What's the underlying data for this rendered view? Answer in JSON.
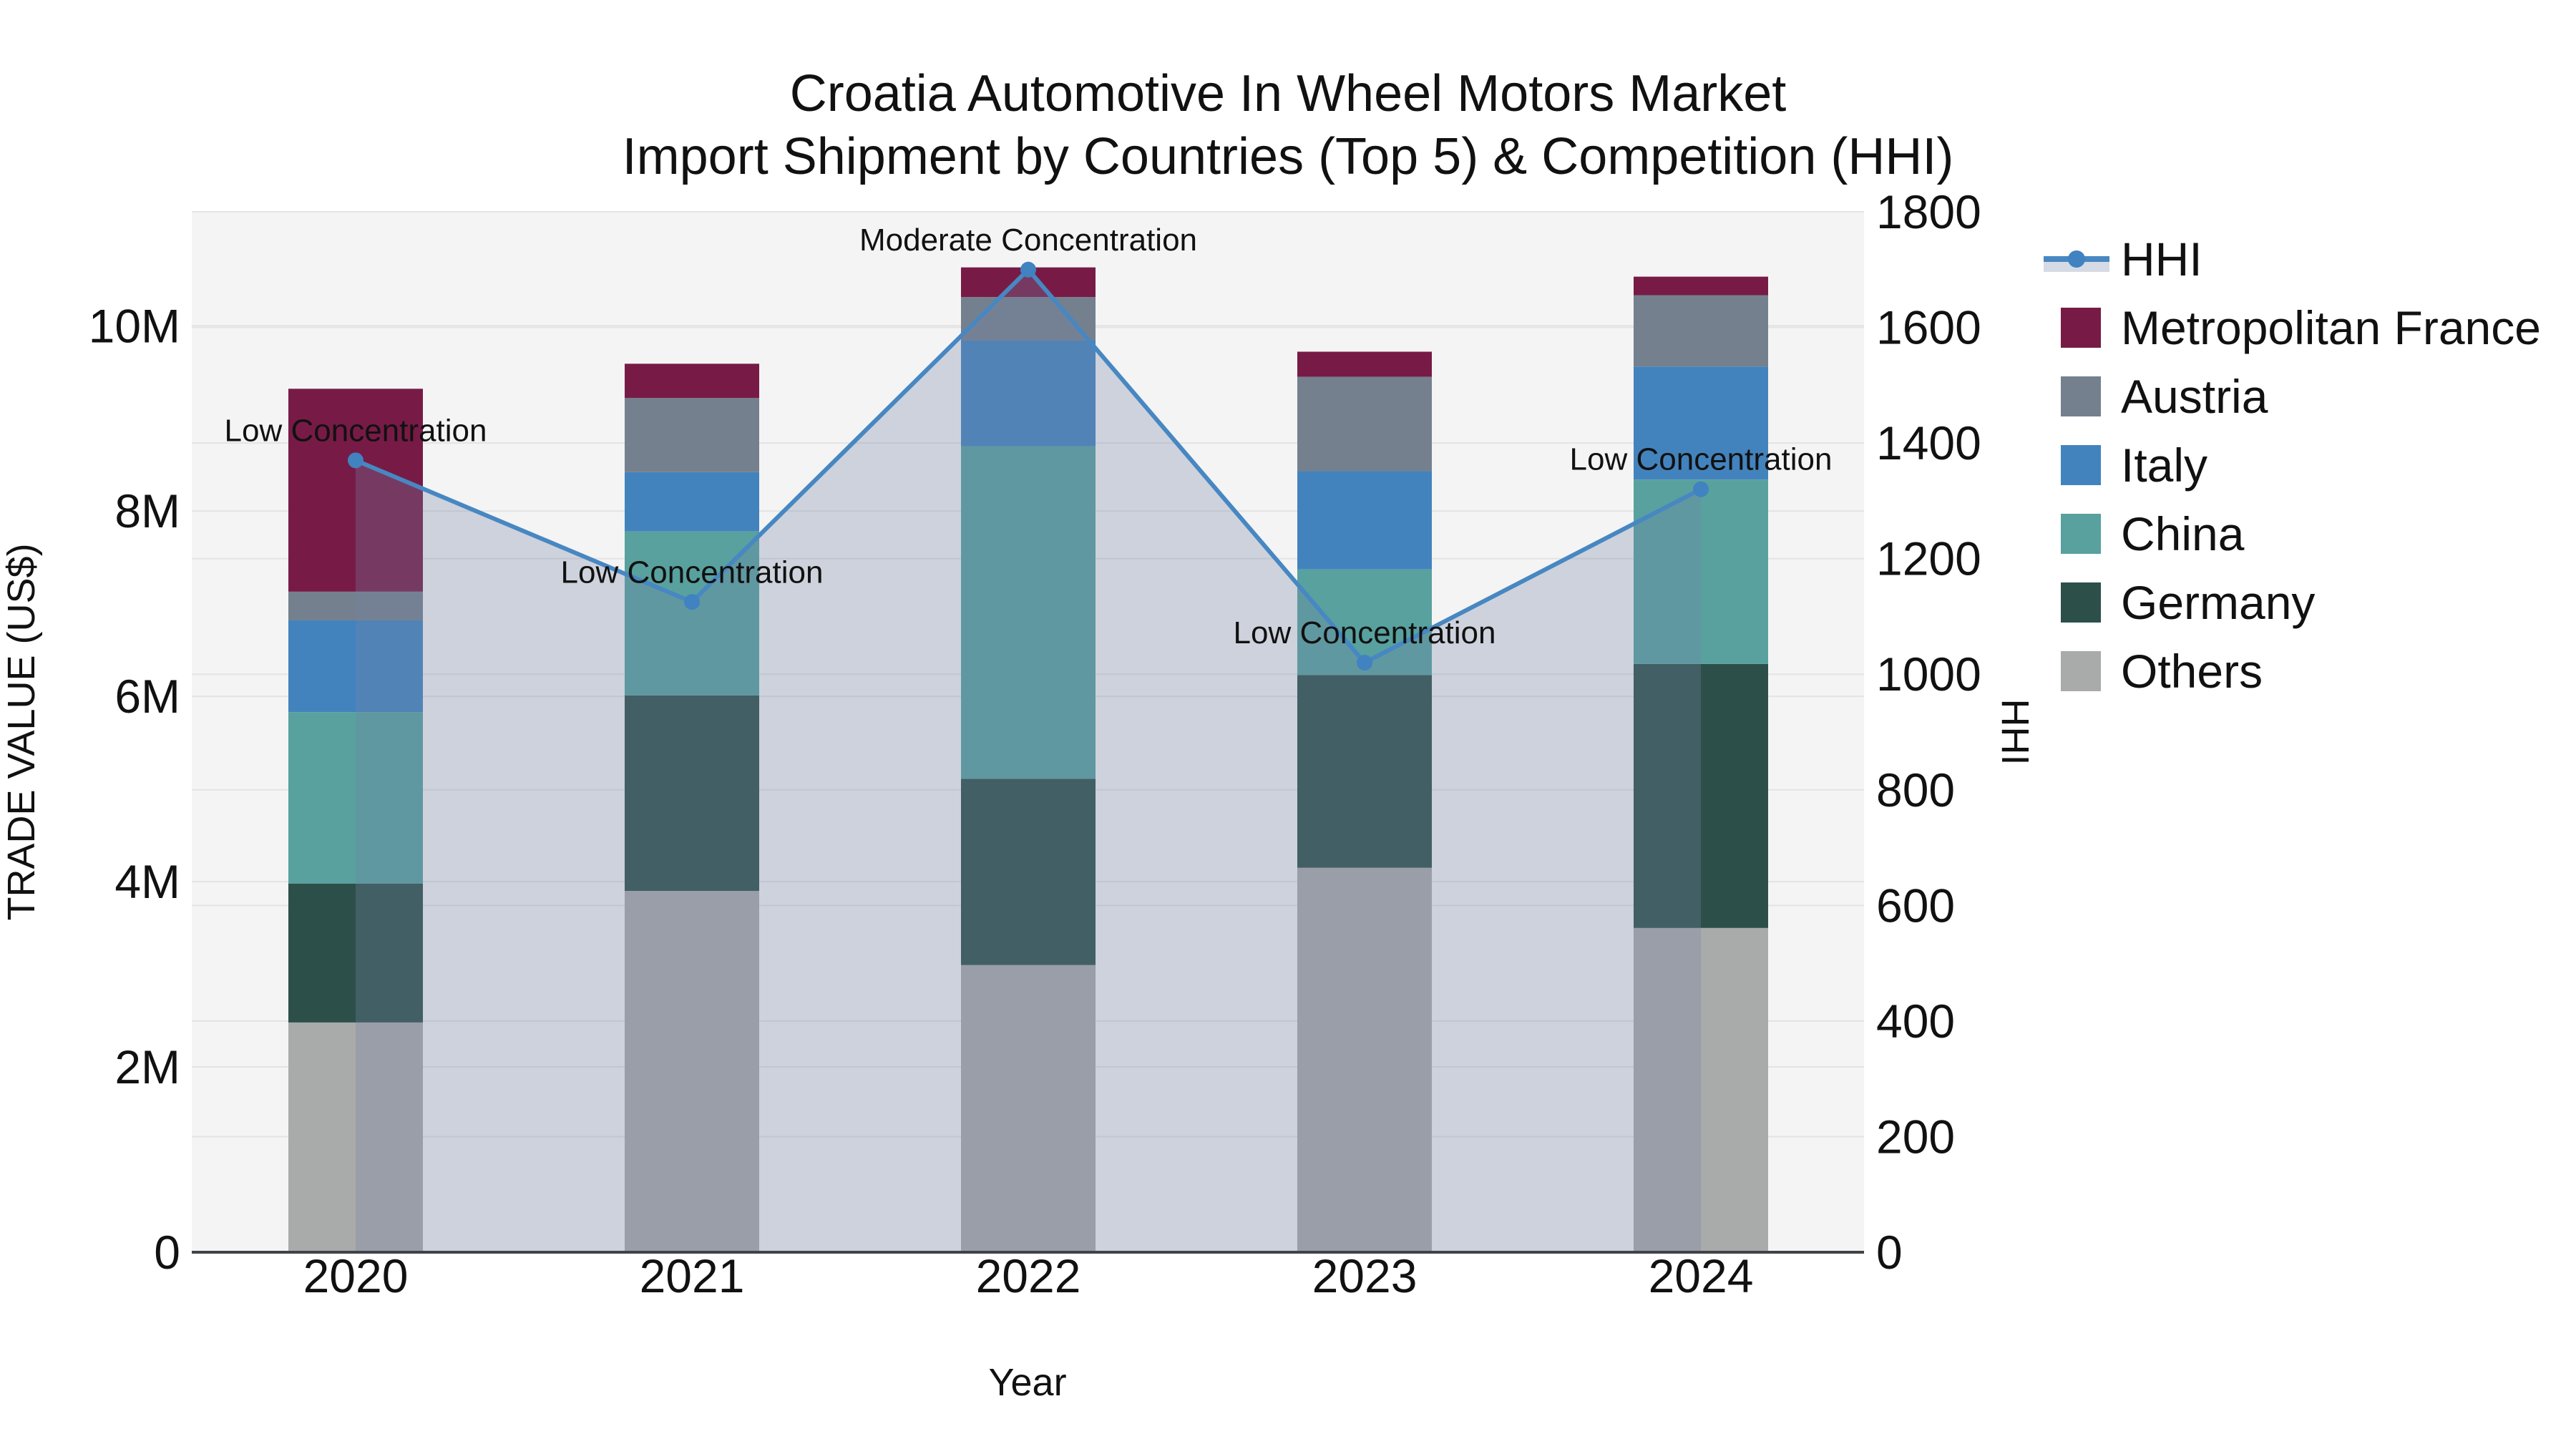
{
  "title": {
    "line1": "Croatia Automotive In Wheel Motors Market",
    "line2": "Import Shipment by Countries (Top 5) & Competition (HHI)"
  },
  "chart_data": {
    "type": "combo-stacked-bar-line",
    "x_label": "Year",
    "y_left_label": "TRADE VALUE (US$)",
    "y_right_label": "HHI",
    "unit": "US$ millions",
    "categories": [
      "2020",
      "2021",
      "2022",
      "2023",
      "2024"
    ],
    "series": [
      {
        "name": "Others",
        "color": "#a9aaaa",
        "values": [
          2.48,
          3.9,
          3.1,
          4.15,
          3.5
        ]
      },
      {
        "name": "Germany",
        "color": "#2d4f4a",
        "values": [
          1.5,
          2.11,
          2.01,
          2.08,
          2.85
        ]
      },
      {
        "name": "China",
        "color": "#58a19f",
        "values": [
          1.85,
          1.77,
          3.59,
          1.14,
          1.99
        ]
      },
      {
        "name": "Italy",
        "color": "#4383bd",
        "values": [
          0.99,
          0.64,
          1.14,
          1.06,
          1.22
        ]
      },
      {
        "name": "Austria",
        "color": "#74808e",
        "values": [
          0.31,
          0.8,
          0.47,
          1.02,
          0.77
        ]
      },
      {
        "name": "Metropolitan France",
        "color": "#771b46",
        "values": [
          2.19,
          0.37,
          0.32,
          0.27,
          0.2
        ]
      }
    ],
    "totals": [
      9.32,
      9.59,
      10.63,
      9.72,
      10.53
    ],
    "line_series": {
      "name": "HHI",
      "color": "#4787c2",
      "marker_color": "#4182c0",
      "fill_color": "#7586a4",
      "fill_opacity": 0.3,
      "values": [
        1370,
        1125,
        1700,
        1020,
        1320
      ]
    },
    "annotations": [
      {
        "x": "2020",
        "text": "Low Concentration"
      },
      {
        "x": "2021",
        "text": "Low Concentration"
      },
      {
        "x": "2022",
        "text": "Moderate Concentration"
      },
      {
        "x": "2023",
        "text": "Low Concentration"
      },
      {
        "x": "2024",
        "text": "Low Concentration"
      }
    ],
    "y_left_ticks": [
      {
        "label": "0",
        "value": 0
      },
      {
        "label": "2M",
        "value": 2
      },
      {
        "label": "4M",
        "value": 4
      },
      {
        "label": "6M",
        "value": 6
      },
      {
        "label": "8M",
        "value": 8
      },
      {
        "label": "10M",
        "value": 10
      }
    ],
    "y_left_range_millions": [
      0,
      11.23
    ],
    "y_right_ticks": [
      0,
      200,
      400,
      600,
      800,
      1000,
      1200,
      1400,
      1600,
      1800
    ],
    "y_right_range": [
      0,
      1800
    ],
    "legend_order": [
      "HHI",
      "Metropolitan France",
      "Austria",
      "Italy",
      "China",
      "Germany",
      "Others"
    ],
    "legend_position": "right"
  },
  "colors": {
    "background": "#ffffff",
    "panel": "#f4f4f4",
    "grid": "#e3e3e3",
    "axis_line": "#3f4347",
    "text": "#111111"
  }
}
